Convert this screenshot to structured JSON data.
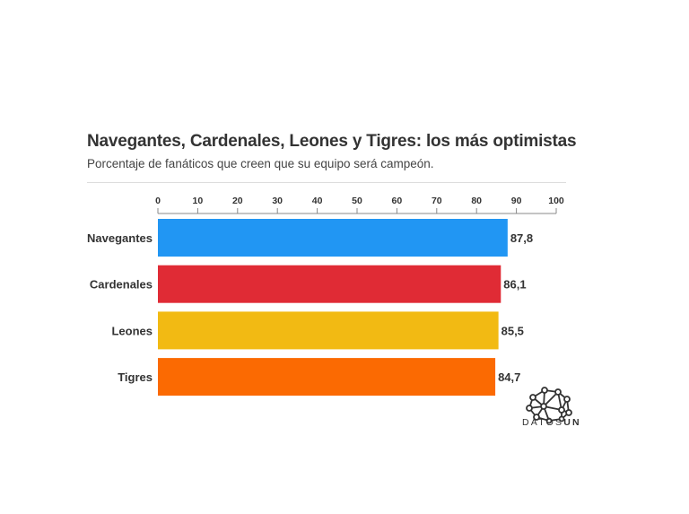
{
  "chart_data": {
    "type": "bar",
    "orientation": "horizontal",
    "title": "Navegantes, Cardenales, Leones y Tigres: los más optimistas",
    "subtitle": "Porcentaje de fanáticos que creen que su equipo será campeón.",
    "categories": [
      "Navegantes",
      "Cardenales",
      "Leones",
      "Tigres"
    ],
    "values": [
      87.8,
      86.1,
      85.5,
      84.7
    ],
    "value_labels": [
      "87,8",
      "86,1",
      "85,5",
      "84,7"
    ],
    "colors": [
      "#2196F3",
      "#E02B35",
      "#F2BA13",
      "#FB6A02"
    ],
    "xlim": [
      0,
      100
    ],
    "x_ticks": [
      0,
      10,
      20,
      30,
      40,
      50,
      60,
      70,
      80,
      90,
      100
    ],
    "axis_position": "top",
    "grid": false,
    "legend": "none"
  },
  "logo": {
    "text_light": "DATOS",
    "text_bold": "UN"
  }
}
